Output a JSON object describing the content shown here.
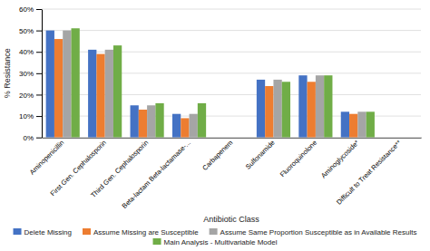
{
  "chart_data": {
    "type": "bar",
    "categories": [
      "Aminopenicillin",
      "First Gen. Cephalosporin",
      "Third Gen. Cephalosporin",
      "Beta-lactam Beta-lactamase-...",
      "Carbapenem",
      "Sulfonamide",
      "Fluoroquinolone",
      "Aminoglycoside*",
      "Difficult to Treat Resistance**"
    ],
    "series": [
      {
        "name": "Delete Missing",
        "color": "#4472c4",
        "values": [
          50,
          41,
          15,
          11,
          0,
          27,
          29,
          12,
          0
        ]
      },
      {
        "name": "Assume Missing are Susceptible",
        "color": "#ed7d31",
        "values": [
          46,
          39,
          13,
          9,
          0,
          24,
          26,
          11,
          0
        ]
      },
      {
        "name": "Assume Same Proportion Susceptible as in Available Results",
        "color": "#a5a5a5",
        "values": [
          50,
          41,
          15,
          11,
          0,
          27,
          29,
          12,
          0
        ]
      },
      {
        "name": "Main Analysis - Multivariable Model",
        "color": "#70ad47",
        "values": [
          51,
          43,
          16,
          16,
          0,
          26,
          29,
          12,
          0
        ]
      }
    ],
    "xlabel": "Antibiotic Class",
    "ylabel": "% Resistance",
    "ylim": [
      0,
      60
    ],
    "yticks": [
      {
        "value": 0,
        "label": "0%"
      },
      {
        "value": 10,
        "label": "10%"
      },
      {
        "value": 20,
        "label": "20%"
      },
      {
        "value": 30,
        "label": "30%"
      },
      {
        "value": 40,
        "label": "40%"
      },
      {
        "value": 50,
        "label": "50%"
      },
      {
        "value": 60,
        "label": "60%"
      }
    ],
    "grid": true,
    "legend": "bottom"
  }
}
